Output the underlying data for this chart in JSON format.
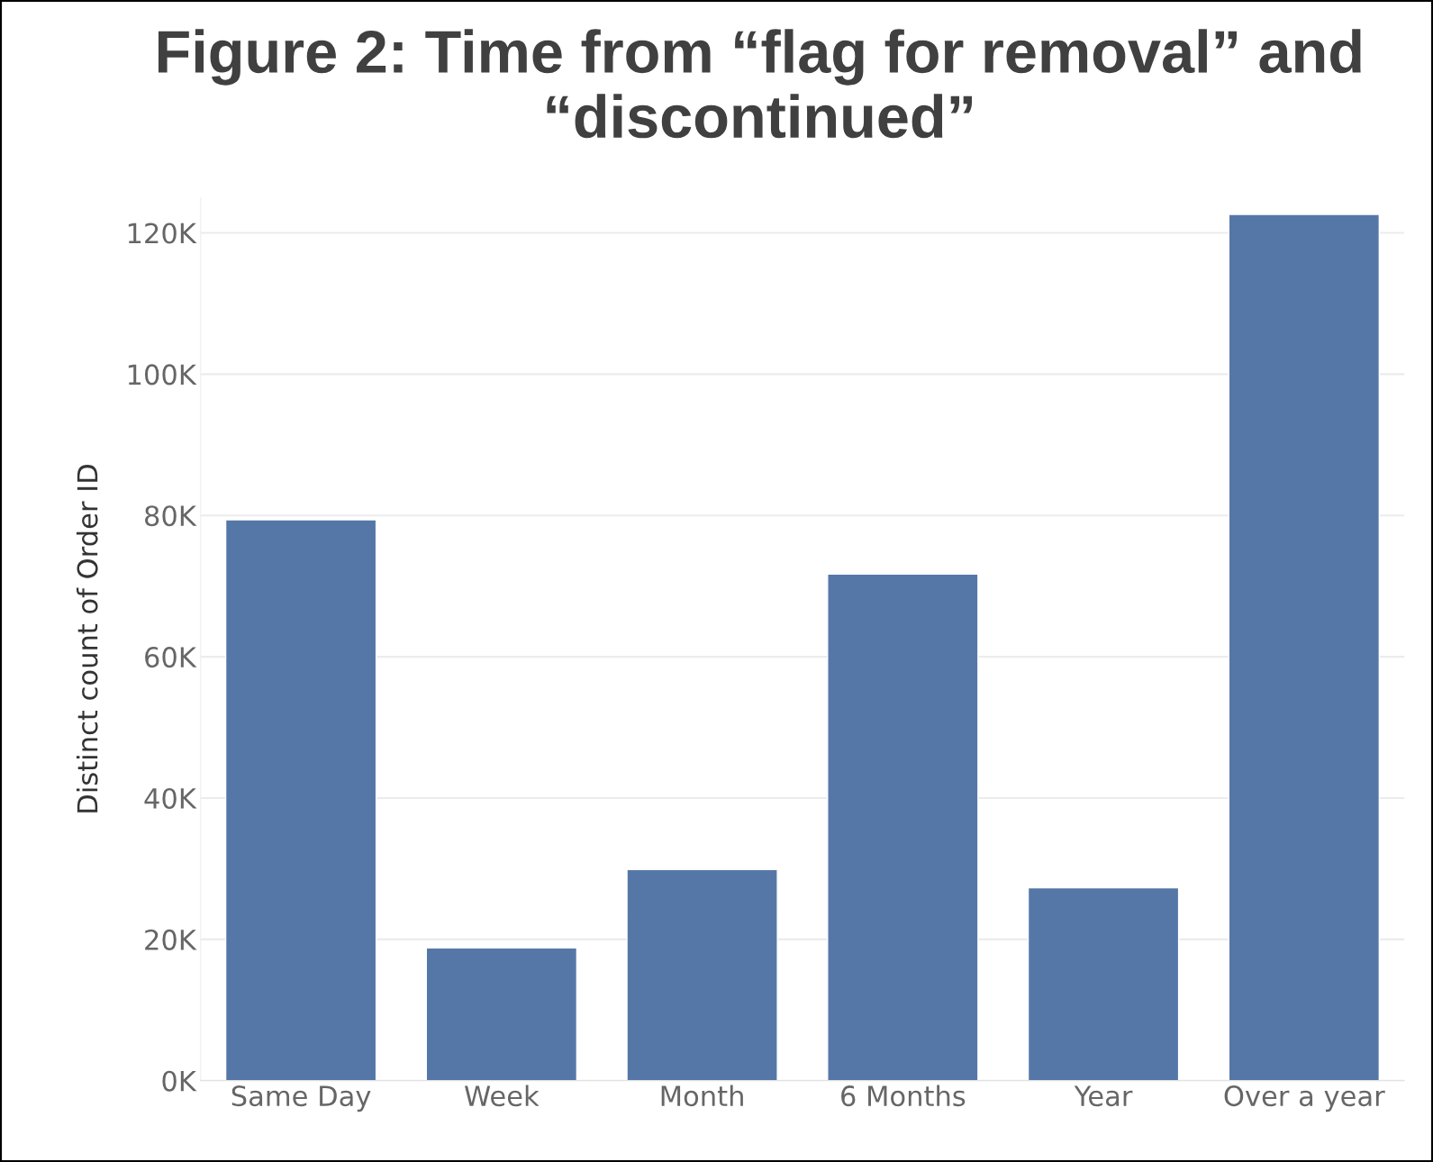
{
  "chart_data": {
    "type": "bar",
    "title": "Figure 2: Time from “flag for removal” and “discontinued”",
    "ylabel": "Distinct count of Order ID",
    "categories": [
      "Same Day",
      "Week",
      "Month",
      "6 Months",
      "Year",
      "Over a year"
    ],
    "values": [
      79400,
      18800,
      29900,
      71700,
      27300,
      122600
    ],
    "color": "#5577a8",
    "ylim": [
      0,
      125000
    ],
    "yticks": [
      {
        "value": 0,
        "label": "0K"
      },
      {
        "value": 20000,
        "label": "20K"
      },
      {
        "value": 40000,
        "label": "40K"
      },
      {
        "value": 60000,
        "label": "60K"
      },
      {
        "value": 80000,
        "label": "80K"
      },
      {
        "value": 100000,
        "label": "100K"
      },
      {
        "value": 120000,
        "label": "120K"
      }
    ],
    "grid": "y"
  }
}
